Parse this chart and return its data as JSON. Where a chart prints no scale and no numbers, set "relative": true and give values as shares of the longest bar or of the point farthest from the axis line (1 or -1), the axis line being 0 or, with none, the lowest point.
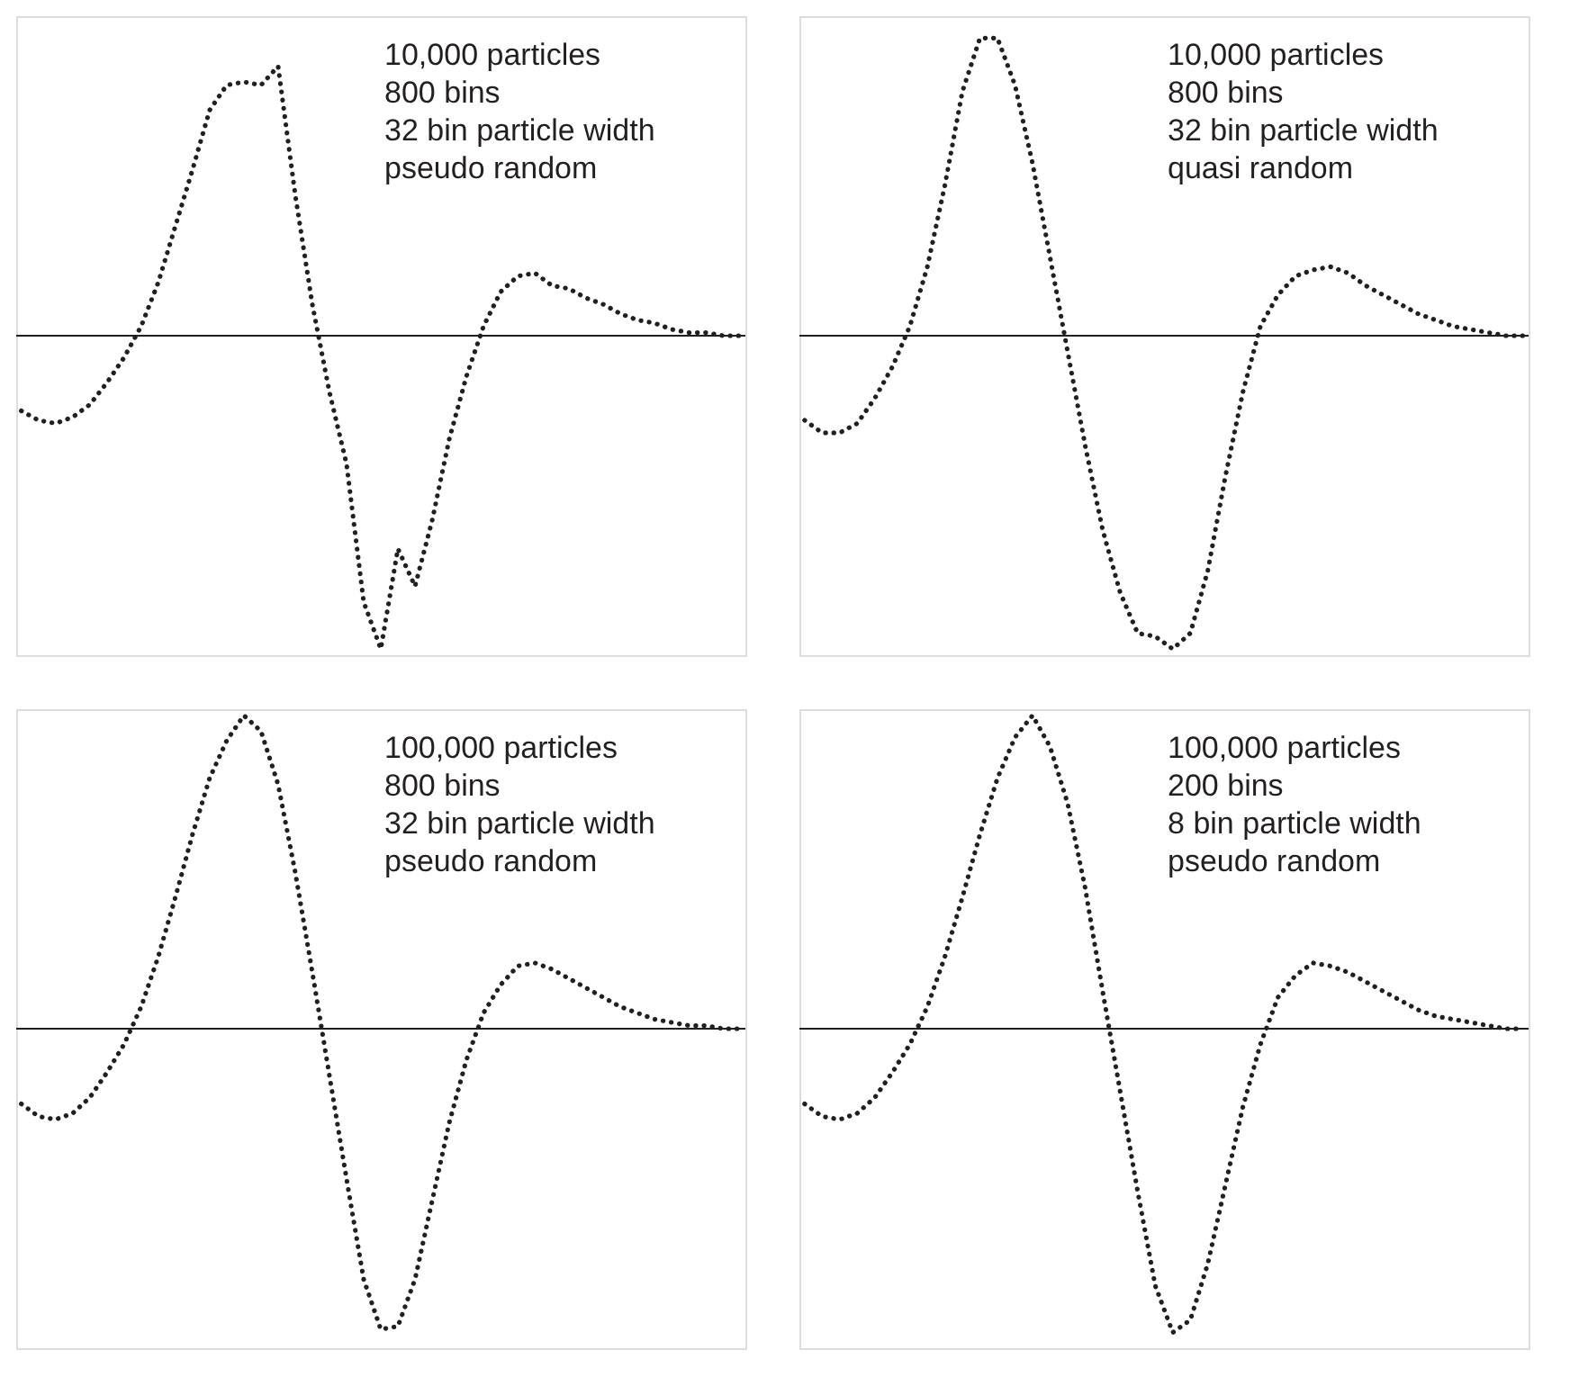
{
  "chart_data": [
    {
      "type": "line",
      "line_style": "dotted",
      "relative": true,
      "tick_labels": false,
      "grid": false,
      "annotations": [
        "10,000 particles",
        "800 bins",
        "32 bin particle width",
        "pseudo random"
      ],
      "categories": [
        null,
        null,
        null,
        null,
        null,
        null,
        null,
        null,
        null,
        null,
        null,
        null,
        null,
        null,
        null,
        null,
        null,
        null,
        null,
        null,
        null,
        null,
        null,
        null,
        null,
        null,
        null,
        null,
        null,
        null,
        null,
        null,
        null,
        null,
        null,
        null,
        null,
        null,
        null,
        null,
        null,
        null,
        null
      ],
      "series": [
        {
          "color": "#231f20",
          "values": [
            -0.24,
            -0.27,
            -0.28,
            -0.26,
            -0.22,
            -0.15,
            -0.07,
            0.03,
            0.17,
            0.35,
            0.53,
            0.72,
            0.8,
            0.81,
            0.8,
            0.86,
            0.45,
            0.1,
            -0.18,
            -0.41,
            -0.85,
            -1.0,
            -0.68,
            -0.8,
            -0.59,
            -0.33,
            -0.13,
            0.03,
            0.14,
            0.19,
            0.2,
            0.16,
            0.15,
            0.12,
            0.1,
            0.07,
            0.05,
            0.04,
            0.02,
            0.01,
            0.01,
            0.0,
            0.0
          ]
        }
      ]
    },
    {
      "type": "line",
      "line_style": "dotted",
      "relative": true,
      "tick_labels": false,
      "grid": false,
      "annotations": [
        "10,000 particles",
        "800 bins",
        "32 bin particle width",
        "quasi random"
      ],
      "categories": [
        null,
        null,
        null,
        null,
        null,
        null,
        null,
        null,
        null,
        null,
        null,
        null,
        null,
        null,
        null,
        null,
        null,
        null,
        null,
        null,
        null,
        null,
        null,
        null,
        null,
        null,
        null,
        null,
        null,
        null,
        null,
        null,
        null,
        null,
        null,
        null,
        null,
        null,
        null,
        null,
        null,
        null
      ],
      "series": [
        {
          "color": "#231f20",
          "values": [
            -0.27,
            -0.31,
            -0.31,
            -0.28,
            -0.2,
            -0.1,
            0.03,
            0.22,
            0.48,
            0.78,
            0.95,
            0.95,
            0.8,
            0.55,
            0.25,
            -0.05,
            -0.35,
            -0.62,
            -0.82,
            -0.95,
            -0.96,
            -1.0,
            -0.95,
            -0.75,
            -0.45,
            -0.18,
            0.03,
            0.13,
            0.19,
            0.21,
            0.22,
            0.2,
            0.16,
            0.13,
            0.1,
            0.07,
            0.05,
            0.03,
            0.02,
            0.01,
            0.0,
            0.0
          ]
        }
      ]
    },
    {
      "type": "line",
      "line_style": "dotted",
      "relative": true,
      "tick_labels": false,
      "grid": false,
      "annotations": [
        "100,000 particles",
        "800 bins",
        "32 bin particle width",
        "pseudo random"
      ],
      "categories": [
        null,
        null,
        null,
        null,
        null,
        null,
        null,
        null,
        null,
        null,
        null,
        null,
        null,
        null,
        null,
        null,
        null,
        null,
        null,
        null,
        null,
        null,
        null,
        null,
        null,
        null,
        null,
        null,
        null,
        null,
        null,
        null,
        null,
        null,
        null,
        null,
        null,
        null,
        null,
        null,
        null,
        null,
        null
      ],
      "series": [
        {
          "color": "#231f20",
          "values": [
            -0.24,
            -0.28,
            -0.29,
            -0.27,
            -0.22,
            -0.14,
            -0.05,
            0.07,
            0.23,
            0.42,
            0.62,
            0.8,
            0.92,
            1.0,
            0.95,
            0.78,
            0.5,
            0.18,
            -0.15,
            -0.48,
            -0.8,
            -0.96,
            -0.95,
            -0.8,
            -0.55,
            -0.3,
            -0.1,
            0.05,
            0.14,
            0.2,
            0.21,
            0.19,
            0.16,
            0.13,
            0.1,
            0.07,
            0.05,
            0.03,
            0.02,
            0.01,
            0.01,
            0.0,
            0.0
          ]
        }
      ]
    },
    {
      "type": "line",
      "line_style": "dotted",
      "relative": true,
      "tick_labels": false,
      "grid": false,
      "annotations": [
        "100,000 particles",
        "200 bins",
        "8 bin particle width",
        "pseudo random"
      ],
      "categories": [
        null,
        null,
        null,
        null,
        null,
        null,
        null,
        null,
        null,
        null,
        null,
        null,
        null,
        null,
        null,
        null,
        null,
        null,
        null,
        null,
        null,
        null,
        null,
        null,
        null,
        null,
        null,
        null,
        null,
        null,
        null,
        null,
        null,
        null,
        null,
        null,
        null,
        null,
        null,
        null,
        null,
        null
      ],
      "series": [
        {
          "color": "#231f20",
          "values": [
            -0.24,
            -0.28,
            -0.29,
            -0.27,
            -0.22,
            -0.14,
            -0.05,
            0.07,
            0.23,
            0.42,
            0.62,
            0.8,
            0.93,
            1.0,
            0.9,
            0.72,
            0.45,
            0.12,
            -0.2,
            -0.52,
            -0.82,
            -0.97,
            -0.93,
            -0.75,
            -0.5,
            -0.25,
            -0.05,
            0.1,
            0.17,
            0.21,
            0.2,
            0.18,
            0.15,
            0.12,
            0.09,
            0.06,
            0.04,
            0.03,
            0.02,
            0.01,
            0.0,
            0.0
          ]
        }
      ]
    }
  ]
}
